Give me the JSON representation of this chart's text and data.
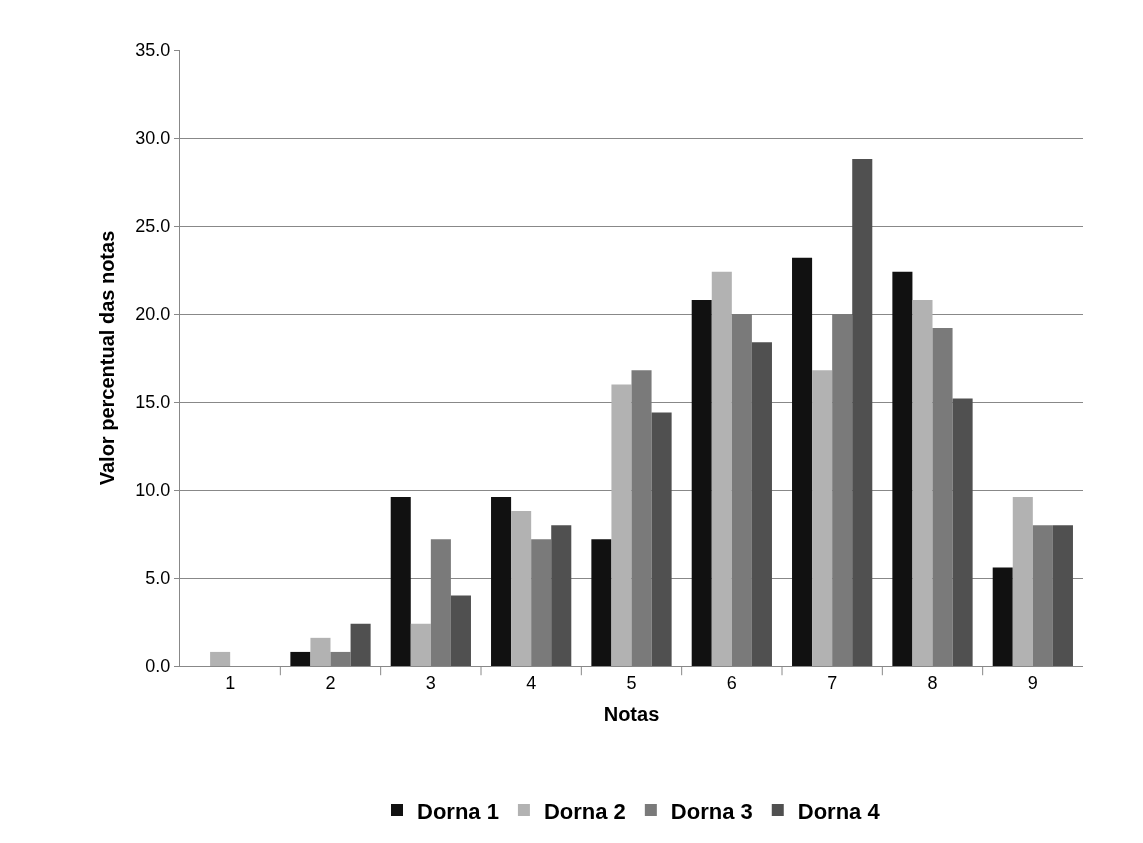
{
  "chart_data": {
    "type": "bar",
    "xlabel": "Notas",
    "ylabel": "Valor percentual das notas",
    "categories": [
      "1",
      "2",
      "3",
      "4",
      "5",
      "6",
      "7",
      "8",
      "9"
    ],
    "series": [
      {
        "name": "Dorna 1",
        "color": "#111111",
        "values": [
          0,
          0.8,
          9.6,
          9.6,
          7.2,
          20.8,
          23.2,
          22.4,
          5.6
        ]
      },
      {
        "name": "Dorna 2",
        "color": "#b2b2b2",
        "values": [
          0.8,
          1.6,
          2.4,
          8.8,
          16.0,
          22.4,
          16.8,
          20.8,
          9.6
        ]
      },
      {
        "name": "Dorna 3",
        "color": "#7a7a7a",
        "values": [
          0,
          0.8,
          7.2,
          7.2,
          16.8,
          20.0,
          20.0,
          19.2,
          8.0
        ]
      },
      {
        "name": "Dorna 4",
        "color": "#505050",
        "values": [
          0,
          2.4,
          4.0,
          8.0,
          14.4,
          18.4,
          28.8,
          15.2,
          8.0
        ]
      }
    ],
    "ylim": [
      0,
      35
    ],
    "yticks": [
      {
        "value": 0,
        "label": "0.0"
      },
      {
        "value": 5,
        "label": "5.0"
      },
      {
        "value": 10,
        "label": "10.0"
      },
      {
        "value": 15,
        "label": "15.0"
      },
      {
        "value": 20,
        "label": "20.0"
      },
      {
        "value": 25,
        "label": "25.0"
      },
      {
        "value": 30,
        "label": "30.0"
      },
      {
        "value": 35,
        "label": "35.0"
      }
    ],
    "grid": "y",
    "legend": "bottom"
  }
}
